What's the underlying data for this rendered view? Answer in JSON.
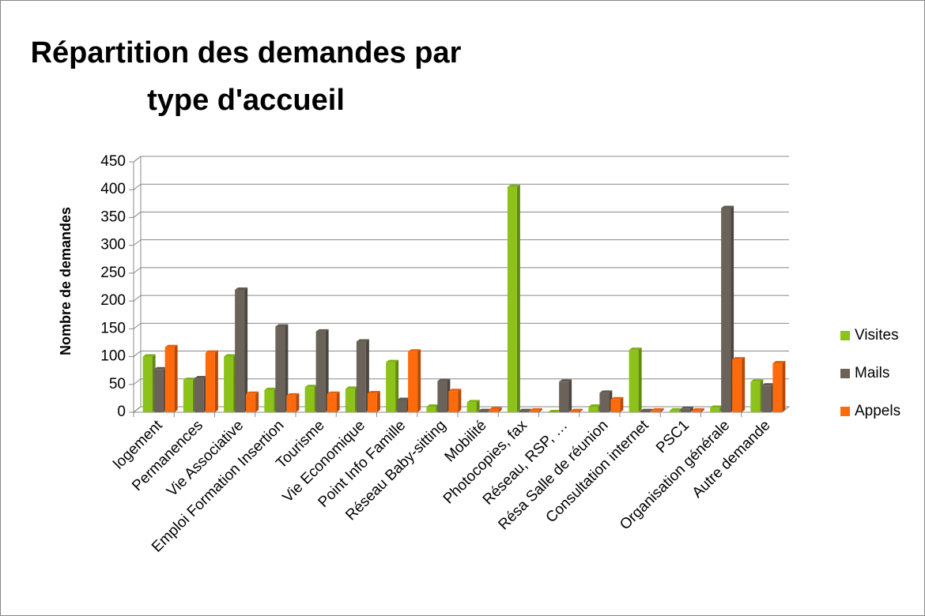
{
  "chart_data": {
    "type": "bar3d",
    "title": "Répartition des demandes par type d'accueil",
    "y_label": "Nombre de demandes",
    "categories": [
      "logement",
      "Permanences",
      "Vie Associative",
      "Emploi Formation Insertion",
      "Tourisme",
      "Vie Economique",
      "Point Info Famille",
      "Réseau Baby-sitting",
      "Mobilité",
      "Photocopies, fax",
      "Réseau, RSP, …",
      "Résa Salle de réunion",
      "Consultation internet",
      "PSC1",
      "Organisation générale",
      "Autre demande"
    ],
    "series": [
      {
        "name": "Visites",
        "color": "#8cc21a",
        "values": [
          100,
          58,
          100,
          40,
          45,
          42,
          90,
          10,
          18,
          405,
          0,
          10,
          112,
          3,
          8,
          55
        ]
      },
      {
        "name": "Mails",
        "color": "#6b6359",
        "values": [
          77,
          61,
          220,
          154,
          145,
          127,
          22,
          56,
          2,
          2,
          55,
          35,
          2,
          6,
          367,
          48
        ]
      },
      {
        "name": "Appels",
        "color": "#ff6a0d",
        "values": [
          117,
          107,
          33,
          30,
          33,
          34,
          109,
          38,
          5,
          3,
          2,
          23,
          3,
          3,
          95,
          88
        ]
      }
    ],
    "ylim": [
      0,
      450
    ],
    "yticks": [
      0,
      50,
      100,
      150,
      200,
      250,
      300,
      350,
      400,
      450
    ],
    "grid": true,
    "legend": "right"
  }
}
